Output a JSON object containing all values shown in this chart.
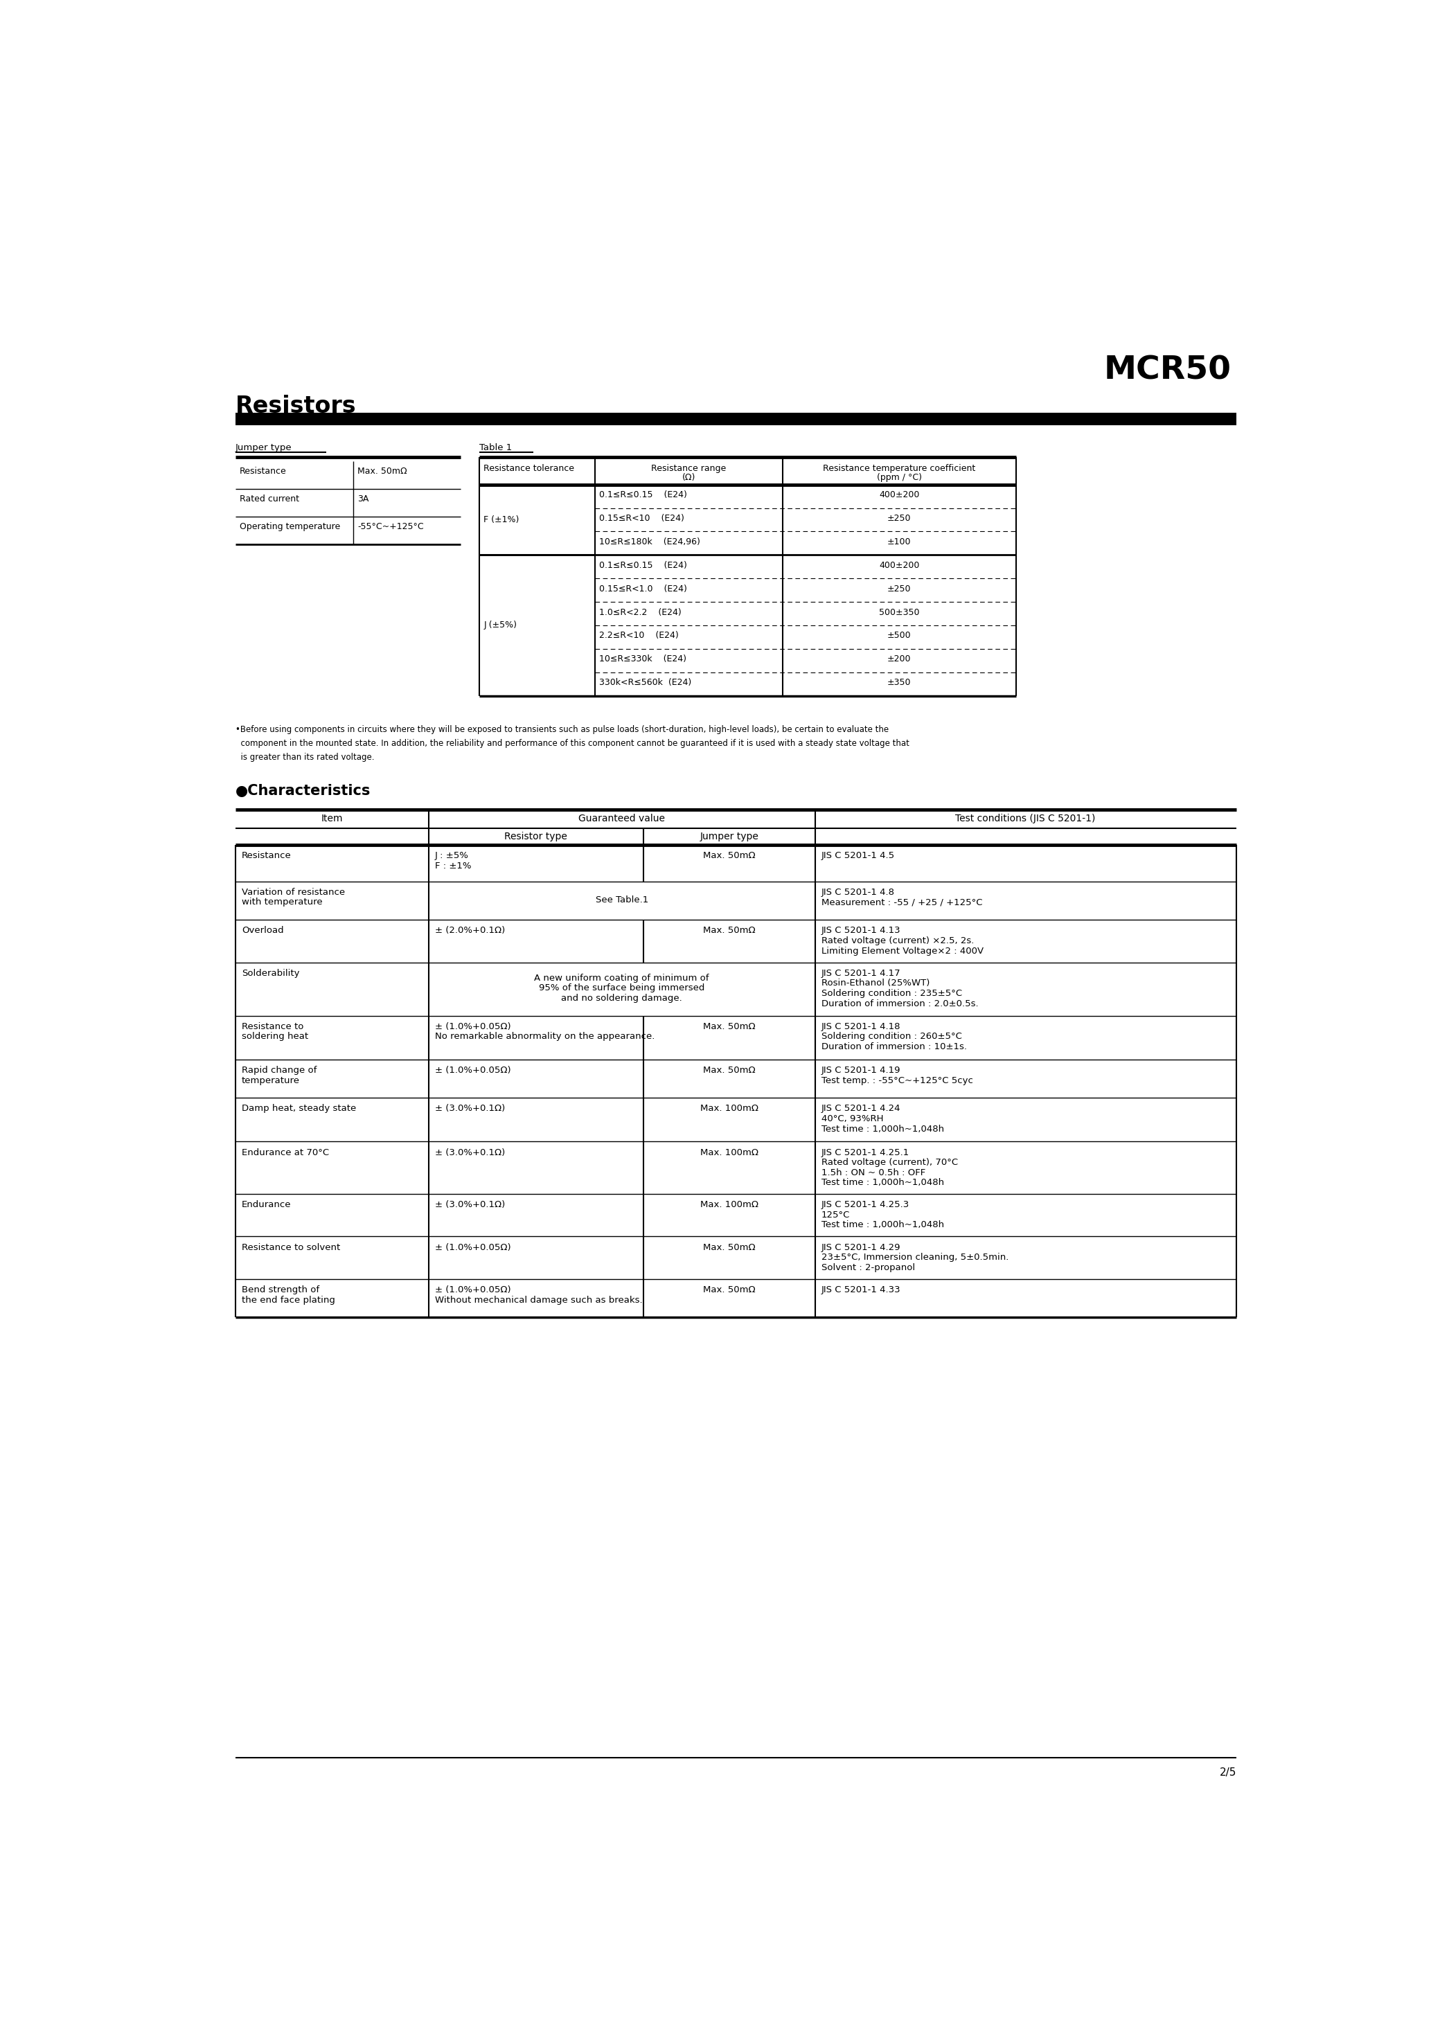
{
  "title": "MCR50",
  "section": "Resistors",
  "bg_color": "#ffffff",
  "page_num": "2/5",
  "jumper_type_label": "Jumper type",
  "jumper_rows": [
    [
      "Resistance",
      "Max. 50mΩ"
    ],
    [
      "Rated current",
      "3A"
    ],
    [
      "Operating temperature",
      "-55°C~+125°C"
    ]
  ],
  "table1_label": "Table 1",
  "table1_rows": [
    [
      "F (±1%)",
      "0.1≤R≤0.15    (E24)",
      "400±200"
    ],
    [
      "",
      "0.15≤R<10    (E24)",
      "±250"
    ],
    [
      "",
      "10≤R≤180k    (E24,96)",
      "±100"
    ],
    [
      "J (±5%)",
      "0.1≤R≤0.15    (E24)",
      "400±200"
    ],
    [
      "",
      "0.15≤R<1.0    (E24)",
      "±250"
    ],
    [
      "",
      "1.0≤R<2.2    (E24)",
      "500±350"
    ],
    [
      "",
      "2.2≤R<10    (E24)",
      "±500"
    ],
    [
      "",
      "10≤R≤330k    (E24)",
      "±200"
    ],
    [
      "",
      "330k<R≤560k  (E24)",
      "±350"
    ]
  ],
  "note_lines": [
    "•Before using components in circuits where they will be exposed to transients such as pulse loads (short-duration, high-level loads), be certain to evaluate the",
    "  component in the mounted state. In addition, the reliability and performance of this component cannot be guaranteed if it is used with a steady state voltage that",
    "  is greater than its rated voltage."
  ],
  "char_title": "●Characteristics",
  "char_rows": [
    {
      "item": "Resistance",
      "resistor": "J : ±5%\nF : ±1%",
      "jumper": "Max. 50mΩ",
      "test": "JIS C 5201-1 4.5",
      "merged": false,
      "rh": 68
    },
    {
      "item": "Variation of resistance\nwith temperature",
      "resistor": "See Table.1",
      "jumper": "",
      "test": "JIS C 5201-1 4.8\nMeasurement : -55 / +25 / +125°C",
      "merged": true,
      "rh": 72
    },
    {
      "item": "Overload",
      "resistor": "± (2.0%+0.1Ω)",
      "jumper": "Max. 50mΩ",
      "test": "JIS C 5201-1 4.13\nRated voltage (current) ×2.5, 2s.\nLimiting Element Voltage×2 : 400V",
      "merged": false,
      "rh": 80
    },
    {
      "item": "Solderability",
      "resistor": "A new uniform coating of minimum of\n95% of the surface being immersed\nand no soldering damage.",
      "jumper": "",
      "test": "JIS C 5201-1 4.17\nRosin-Ethanol (25%WT)\nSoldering condition : 235±5°C\nDuration of immersion : 2.0±0.5s.",
      "merged": true,
      "rh": 100
    },
    {
      "item": "Resistance to\nsoldering heat",
      "resistor": "± (1.0%+0.05Ω)\nNo remarkable abnormality on the appearance.",
      "jumper": "Max. 50mΩ",
      "test": "JIS C 5201-1 4.18\nSoldering condition : 260±5°C\nDuration of immersion : 10±1s.",
      "merged": false,
      "rh": 82
    },
    {
      "item": "Rapid change of\ntemperature",
      "resistor": "± (1.0%+0.05Ω)",
      "jumper": "Max. 50mΩ",
      "test": "JIS C 5201-1 4.19\nTest temp. : -55°C~+125°C 5cyc",
      "merged": false,
      "rh": 72
    },
    {
      "item": "Damp heat, steady state",
      "resistor": "± (3.0%+0.1Ω)",
      "jumper": "Max. 100mΩ",
      "test": "JIS C 5201-1 4.24\n40°C, 93%RH\nTest time : 1,000h~1,048h",
      "merged": false,
      "rh": 82
    },
    {
      "item": "Endurance at 70°C",
      "resistor": "± (3.0%+0.1Ω)",
      "jumper": "Max. 100mΩ",
      "test": "JIS C 5201-1 4.25.1\nRated voltage (current), 70°C\n1.5h : ON ~ 0.5h : OFF\nTest time : 1,000h~1,048h",
      "merged": false,
      "rh": 98
    },
    {
      "item": "Endurance",
      "resistor": "± (3.0%+0.1Ω)",
      "jumper": "Max. 100mΩ",
      "test": "JIS C 5201-1 4.25.3\n125°C\nTest time : 1,000h~1,048h",
      "merged": false,
      "rh": 80
    },
    {
      "item": "Resistance to solvent",
      "resistor": "± (1.0%+0.05Ω)",
      "jumper": "Max. 50mΩ",
      "test": "JIS C 5201-1 4.29\n23±5°C, Immersion cleaning, 5±0.5min.\nSolvent : 2-propanol",
      "merged": false,
      "rh": 80
    },
    {
      "item": "Bend strength of\nthe end face plating",
      "resistor": "± (1.0%+0.05Ω)\nWithout mechanical damage such as breaks.",
      "jumper": "Max. 50mΩ",
      "test": "JIS C 5201-1 4.33",
      "merged": false,
      "rh": 72
    }
  ]
}
